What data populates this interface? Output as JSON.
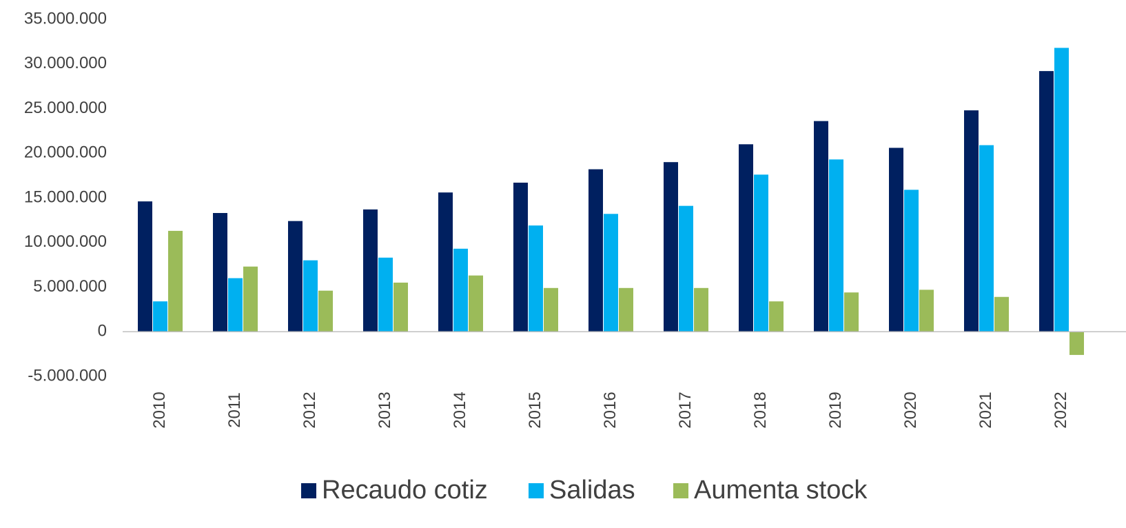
{
  "chart_data": {
    "type": "bar",
    "categories": [
      "2010",
      "2011",
      "2012",
      "2013",
      "2014",
      "2015",
      "2016",
      "2017",
      "2018",
      "2019",
      "2020",
      "2021",
      "2022"
    ],
    "series": [
      {
        "name": "Recaudo cotiz",
        "color": "#002060",
        "values": [
          14600000,
          13300000,
          12400000,
          13700000,
          15600000,
          16700000,
          18200000,
          19000000,
          21000000,
          23600000,
          20600000,
          24800000,
          29200000
        ]
      },
      {
        "name": "Salidas",
        "color": "#00b0f0",
        "values": [
          3400000,
          6000000,
          8000000,
          8300000,
          9300000,
          11900000,
          13200000,
          14100000,
          17600000,
          19300000,
          15900000,
          20900000,
          31800000
        ]
      },
      {
        "name": "Aumenta stock",
        "color": "#9bbb59",
        "values": [
          11300000,
          7300000,
          4600000,
          5500000,
          6300000,
          4900000,
          4900000,
          4900000,
          3400000,
          4400000,
          4700000,
          3900000,
          -2600000
        ]
      }
    ],
    "ylim": [
      -5000000,
      35000000
    ],
    "yticks": [
      {
        "value": -5000000,
        "label": "-5.000.000"
      },
      0,
      {
        "value": 5000000,
        "label": "5.000.000"
      },
      {
        "value": 10000000,
        "label": "10.000.000"
      },
      {
        "value": 15000000,
        "label": "15.000.000"
      },
      {
        "value": 20000000,
        "label": "20.000.000"
      },
      {
        "value": 25000000,
        "label": "25.000.000"
      },
      {
        "value": 30000000,
        "label": "30.000.000"
      },
      {
        "value": 35000000,
        "label": "35.000.000"
      }
    ],
    "legend": "bottom"
  }
}
